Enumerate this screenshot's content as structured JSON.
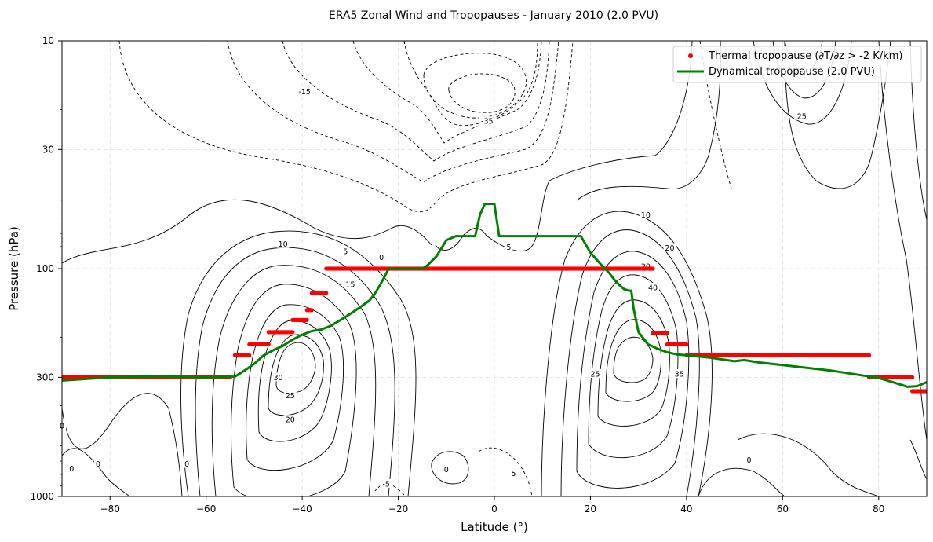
{
  "chart_data": {
    "type": "contour",
    "title": "ERA5 Zonal Wind and Tropopauses - January 2010 (2.0 PVU)",
    "xlabel": "Latitude (°)",
    "ylabel": "Pressure (hPa)",
    "xlim": [
      -90,
      90
    ],
    "ylim": [
      1000,
      10
    ],
    "y_scale": "log",
    "x_ticks": [
      -80,
      -60,
      -40,
      -20,
      0,
      20,
      40,
      60,
      80
    ],
    "x_tick_labels": [
      "−80",
      "−60",
      "−40",
      "−20",
      "0",
      "20",
      "40",
      "60",
      "80"
    ],
    "y_ticks": [
      10,
      30,
      100,
      300,
      1000
    ],
    "y_tick_labels": [
      "10",
      "30",
      "100",
      "300",
      "1000"
    ],
    "grid": true,
    "legend_position": "top-right",
    "legend": [
      {
        "label": "Thermal tropopause (∂T/∂z > -2 K/km)",
        "marker": "dot",
        "color": "#ff0000"
      },
      {
        "label": "Dynamical tropopause (2.0 PVU)",
        "marker": "line",
        "color": "#008000"
      }
    ],
    "colors": {
      "thermal": "#ff0000",
      "dynamical": "#008000",
      "contour": "#000000"
    },
    "contour_labels": [
      {
        "text": "-15",
        "x": -39.5,
        "y": 16.7
      },
      {
        "text": "-35",
        "x": -1.5,
        "y": 22.5
      },
      {
        "text": "25",
        "x": 64,
        "y": 21.4
      },
      {
        "text": "10",
        "x": 31.5,
        "y": 58
      },
      {
        "text": "10",
        "x": -44,
        "y": 78
      },
      {
        "text": "5",
        "x": -31,
        "y": 84
      },
      {
        "text": "0",
        "x": -23.5,
        "y": 89
      },
      {
        "text": "5",
        "x": 3,
        "y": 80.5
      },
      {
        "text": "20",
        "x": 36.5,
        "y": 81
      },
      {
        "text": "30",
        "x": 31.5,
        "y": 97.5
      },
      {
        "text": "40",
        "x": 33,
        "y": 121
      },
      {
        "text": "15",
        "x": -30,
        "y": 117
      },
      {
        "text": "30",
        "x": -45,
        "y": 300
      },
      {
        "text": "25",
        "x": -42.5,
        "y": 360
      },
      {
        "text": "20",
        "x": -42.5,
        "y": 460
      },
      {
        "text": "25",
        "x": 21,
        "y": 290
      },
      {
        "text": "35",
        "x": 38.5,
        "y": 290
      },
      {
        "text": "0",
        "x": -90,
        "y": 490
      },
      {
        "text": "0",
        "x": -88,
        "y": 755
      },
      {
        "text": "0",
        "x": -82.5,
        "y": 720
      },
      {
        "text": "0",
        "x": -64,
        "y": 720
      },
      {
        "text": "0",
        "x": -10,
        "y": 760
      },
      {
        "text": "5",
        "x": 4,
        "y": 790
      },
      {
        "text": "-5",
        "x": -22.5,
        "y": 880
      },
      {
        "text": "0",
        "x": 53,
        "y": 690
      }
    ],
    "thermal_tropopause": [
      {
        "x0": -90,
        "x1": -55,
        "y": 300
      },
      {
        "x0": -54,
        "x1": -51,
        "y": 240
      },
      {
        "x0": -51,
        "x1": -47,
        "y": 215
      },
      {
        "x0": -47,
        "x1": -42,
        "y": 190
      },
      {
        "x0": -42,
        "x1": -39,
        "y": 168
      },
      {
        "x0": -39,
        "x1": -38,
        "y": 152
      },
      {
        "x0": -38,
        "x1": -35,
        "y": 128
      },
      {
        "x0": -35,
        "x1": 33,
        "y": 100
      },
      {
        "x0": 33,
        "x1": 36,
        "y": 192
      },
      {
        "x0": 36,
        "x1": 40,
        "y": 215
      },
      {
        "x0": 40,
        "x1": 78,
        "y": 240
      },
      {
        "x0": 78,
        "x1": 87,
        "y": 300
      },
      {
        "x0": 87,
        "x1": 90,
        "y": 345
      }
    ],
    "dynamical_tropopause": {
      "x": [
        -90,
        -85,
        -80,
        -70,
        -60,
        -54,
        -52,
        -50,
        -48,
        -46,
        -44,
        -42,
        -40,
        -38,
        -36,
        -34,
        -32,
        -30,
        -28,
        -26,
        -25,
        -24,
        -23,
        -22,
        -20,
        -15,
        -14,
        -12,
        -10,
        -8,
        -5,
        -4,
        -3,
        -2,
        -1,
        0,
        1,
        5,
        10,
        15,
        18,
        20,
        22,
        24,
        25,
        26,
        27,
        28,
        28.5,
        29,
        30,
        32,
        34,
        36,
        38,
        40,
        45,
        50,
        52,
        55,
        60,
        70,
        80,
        84,
        86,
        88,
        90
      ],
      "y": [
        310,
        305,
        300,
        297,
        300,
        298,
        280,
        262,
        240,
        228,
        218,
        205,
        195,
        188,
        185,
        178,
        168,
        158,
        148,
        138,
        130,
        120,
        110,
        100,
        100,
        100,
        97,
        88,
        75,
        72,
        72,
        72,
        58,
        52,
        52,
        52,
        72,
        72,
        72,
        72,
        72,
        85,
        95,
        105,
        112,
        118,
        123,
        125,
        125,
        150,
        190,
        215,
        225,
        233,
        238,
        240,
        246,
        255,
        252,
        258,
        265,
        280,
        302,
        320,
        330,
        328,
        315
      ]
    }
  }
}
